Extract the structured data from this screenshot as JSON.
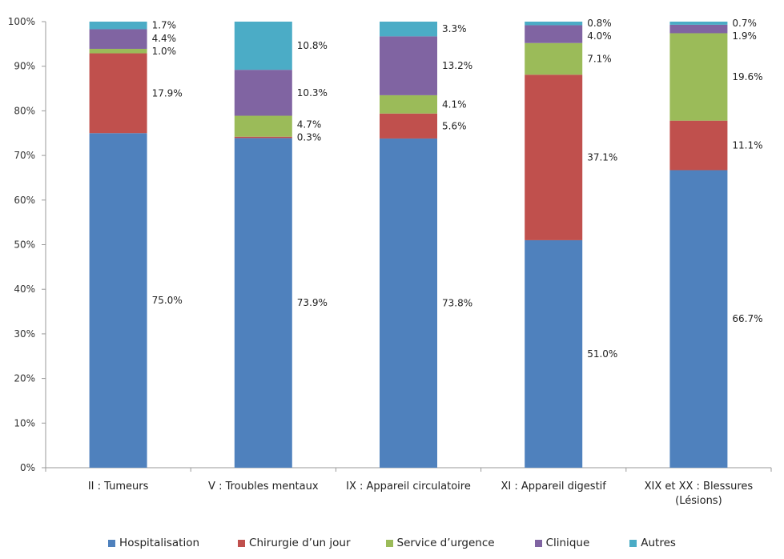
{
  "chart_data": {
    "type": "bar",
    "stacked": true,
    "percent_stacked": true,
    "title": "",
    "xlabel": "",
    "ylabel": "",
    "ylim": [
      0,
      100
    ],
    "y_ticks": [
      "0%",
      "10%",
      "20%",
      "30%",
      "40%",
      "50%",
      "60%",
      "70%",
      "80%",
      "90%",
      "100%"
    ],
    "grid": false,
    "legend_position": "bottom",
    "categories": [
      [
        "II : Tumeurs"
      ],
      [
        "V : Troubles mentaux"
      ],
      [
        "IX : Appareil circulatoire"
      ],
      [
        "XI : Appareil digestif"
      ],
      [
        "XIX et XX : Blessures",
        "(Lésions)"
      ]
    ],
    "series": [
      {
        "name": "Hospitalisation",
        "color": "#4F81BD",
        "values": [
          75.0,
          73.9,
          73.8,
          51.0,
          66.7
        ],
        "labels": [
          "75.0%",
          "73.9%",
          "73.8%",
          "51.0%",
          "66.7%"
        ]
      },
      {
        "name": "Chirurgie d’un jour",
        "color": "#C0504D",
        "values": [
          17.9,
          0.3,
          5.6,
          37.1,
          11.1
        ],
        "labels": [
          "17.9%",
          "0.3%",
          "5.6%",
          "37.1%",
          "11.1%"
        ]
      },
      {
        "name": "Service d’urgence",
        "color": "#9BBB59",
        "values": [
          1.0,
          4.7,
          4.1,
          7.1,
          19.6
        ],
        "labels": [
          "1.0%",
          "4.7%",
          "4.1%",
          "7.1%",
          "19.6%"
        ]
      },
      {
        "name": "Clinique",
        "color": "#8064A2",
        "values": [
          4.4,
          10.3,
          13.2,
          4.0,
          1.9
        ],
        "labels": [
          "4.4%",
          "10.3%",
          "13.2%",
          "4.0%",
          "1.9%"
        ]
      },
      {
        "name": "Autres",
        "color": "#4BACC6",
        "values": [
          1.7,
          10.8,
          3.3,
          0.8,
          0.7
        ],
        "labels": [
          "1.7%",
          "10.8%",
          "3.3%",
          "0.8%",
          "0.7%"
        ]
      }
    ]
  }
}
